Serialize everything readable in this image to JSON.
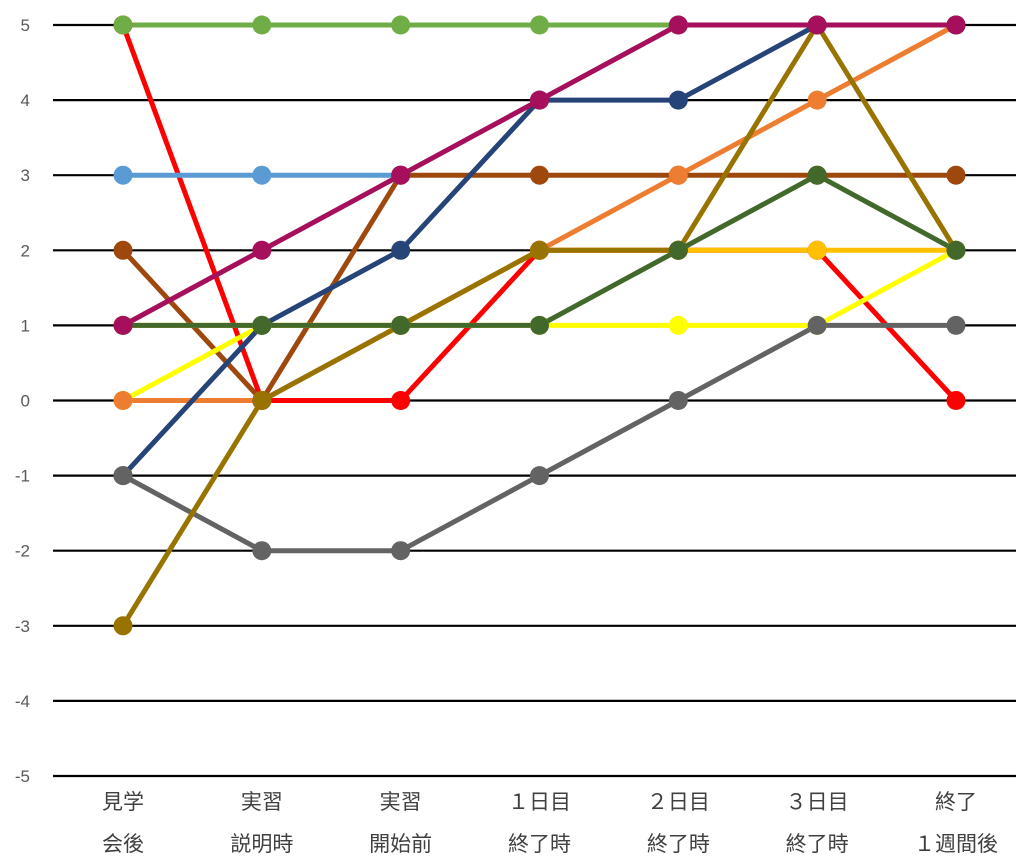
{
  "chart_data": {
    "type": "line",
    "title": "",
    "xlabel": "",
    "ylabel": "",
    "ylim": [
      -5,
      5
    ],
    "yticks": [
      5,
      4,
      3,
      2,
      1,
      0,
      -1,
      -2,
      -3,
      -4,
      -5
    ],
    "grid": true,
    "legend": "none",
    "categories": [
      [
        "見学",
        "会後"
      ],
      [
        "実習",
        "説明時"
      ],
      [
        "実習",
        "開始前"
      ],
      [
        "１日目",
        "終了時"
      ],
      [
        "２日目",
        "終了時"
      ],
      [
        "３日目",
        "終了時"
      ],
      [
        "終了",
        "１週間後"
      ]
    ],
    "series": [
      {
        "color": "#FF0000",
        "values": [
          5,
          0,
          0,
          2,
          2,
          2,
          0
        ]
      },
      {
        "color": "#5B9BD5",
        "values": [
          3,
          3,
          3,
          null,
          null,
          null,
          null
        ]
      },
      {
        "color": "#9E480E",
        "values": [
          2,
          0,
          3,
          3,
          3,
          3,
          3
        ]
      },
      {
        "color": "#FFC000",
        "values": [
          1,
          1,
          1,
          2,
          2,
          2,
          2
        ]
      },
      {
        "color": "#FFFF00",
        "values": [
          0,
          1,
          1,
          1,
          1,
          1,
          2
        ]
      },
      {
        "color": "#ED7D31",
        "values": [
          0,
          0,
          1,
          2,
          3,
          4,
          5
        ]
      },
      {
        "color": "#264478",
        "values": [
          -1,
          1,
          2,
          4,
          4,
          5,
          5
        ]
      },
      {
        "color": "#636363",
        "values": [
          -1,
          -2,
          -2,
          -1,
          0,
          1,
          1
        ]
      },
      {
        "color": "#997300",
        "values": [
          -3,
          0,
          1,
          2,
          2,
          5,
          2
        ]
      },
      {
        "color": "#43682B",
        "values": [
          1,
          1,
          1,
          1,
          2,
          3,
          2
        ]
      },
      {
        "color": "#70AD47",
        "values": [
          5,
          5,
          5,
          5,
          5,
          null,
          null
        ]
      },
      {
        "color": "#A50F5B",
        "values": [
          1,
          2,
          3,
          4,
          5,
          5,
          5
        ]
      }
    ]
  }
}
